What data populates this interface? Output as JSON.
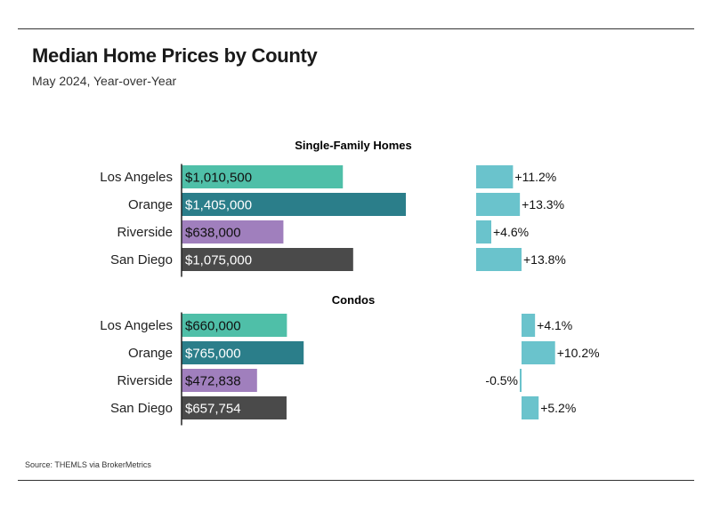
{
  "title": "Median Home Prices by County",
  "subtitle": "May 2024, Year-over-Year",
  "source": "Source:  THEMLS via BrokerMetrics",
  "colors": {
    "Los Angeles": "#4fbfa8",
    "Orange": "#2b7e8a",
    "Riverside": "#a07fbd",
    "San Diego": "#4a4a4a",
    "change_bar": "#6ac3cc",
    "axis": "#222222"
  },
  "chart_data": [
    {
      "type": "bar",
      "title": "Single-Family Homes",
      "categories": [
        "Los Angeles",
        "Orange",
        "Riverside",
        "San Diego"
      ],
      "series": [
        {
          "values": [
            1010500,
            1405000,
            638000,
            1075000
          ],
          "labels": [
            "$1,010,500",
            "$1,405,000",
            "$638,000",
            "$1,075,000"
          ]
        },
        {
          "values": [
            11.2,
            13.3,
            4.6,
            13.8
          ],
          "labels": [
            "+11.2%",
            "+13.3%",
            "+4.6%",
            "+13.8%"
          ]
        }
      ]
    },
    {
      "type": "bar",
      "title": "Condos",
      "categories": [
        "Los Angeles",
        "Orange",
        "Riverside",
        "San Diego"
      ],
      "series": [
        {
          "values": [
            660000,
            765000,
            472838,
            657754
          ],
          "labels": [
            "$660,000",
            "$765,000",
            "$472,838",
            "$657,754"
          ]
        },
        {
          "values": [
            4.1,
            10.2,
            -0.5,
            5.2
          ],
          "labels": [
            "+4.1%",
            "+10.2%",
            "-0.5%",
            "+5.2%"
          ]
        }
      ]
    }
  ]
}
